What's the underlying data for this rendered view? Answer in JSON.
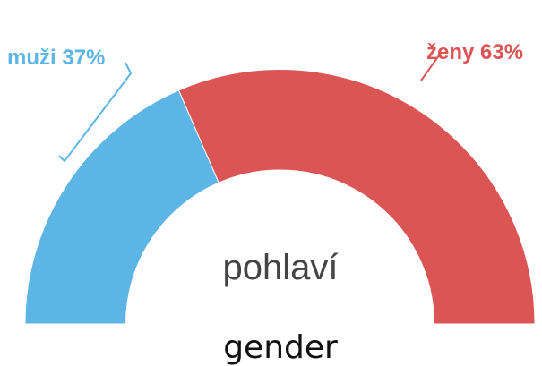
{
  "chart_data": {
    "type": "pie",
    "shape": "half-donut",
    "title": "pohlaví",
    "caption": "gender",
    "categories": [
      "muži",
      "ženy"
    ],
    "values": [
      37,
      63
    ],
    "value_labels": [
      "37%",
      "63%"
    ],
    "colors": [
      "#5db5e5",
      "#dc5555"
    ]
  }
}
